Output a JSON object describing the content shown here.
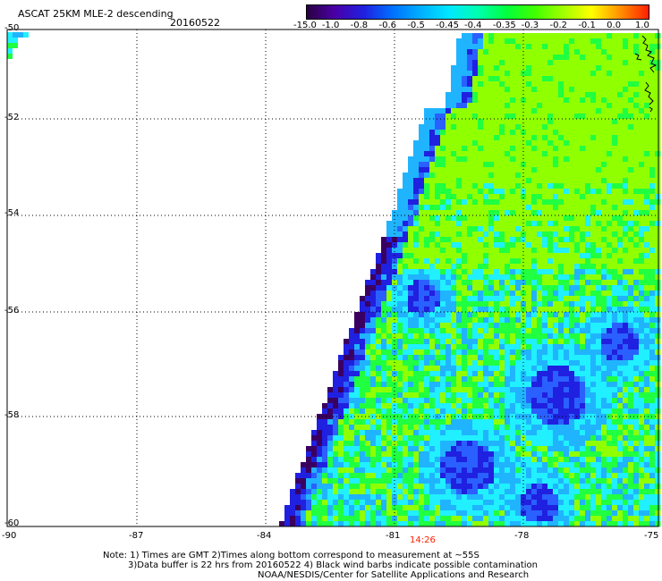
{
  "header": {
    "title": "ASCAT 25KM MLE-2 descending",
    "date": "20160522"
  },
  "colorbar": {
    "labels": [
      "-15.0",
      "-1.0",
      "-0.8",
      "-0.6",
      "-0.5",
      "-0.45",
      "-0.4",
      "-0.35",
      "-0.3",
      "-0.2",
      "-0.1",
      "0.0",
      "1.0"
    ],
    "colors": [
      "#2a0040",
      "#4a00a8",
      "#2020e0",
      "#0070ff",
      "#00b0ff",
      "#00e8ff",
      "#00ffb0",
      "#00ff40",
      "#40ff00",
      "#a0ff00",
      "#ffff00",
      "#ff9000",
      "#ff2000"
    ]
  },
  "axes": {
    "x_labels": [
      "-90",
      "-87",
      "-84",
      "-81",
      "-78",
      "-75"
    ],
    "y_labels": [
      "-50",
      "-52",
      "-54",
      "-56",
      "-58",
      "-60"
    ],
    "time_label": "14:26",
    "time_color": "#ff2000"
  },
  "notes": {
    "line1": "Note: 1) Times are GMT 2)Times along bottom correspond to measurement at ~55S",
    "line2": "3)Data buffer is 22 hrs from 20160522 4) Black wind barbs indicate possible contamination",
    "line3": "NOAA/NESDIS/Center for Satellite Applications and Research"
  },
  "palette": {
    "dark_purple": "#3a0060",
    "blue": "#2020e0",
    "mid_blue": "#2a60ff",
    "light_blue": "#20b4ff",
    "cyan": "#20f0ff",
    "green": "#20ff40",
    "lime": "#90ff00",
    "yellow_green": "#a8ff10"
  }
}
